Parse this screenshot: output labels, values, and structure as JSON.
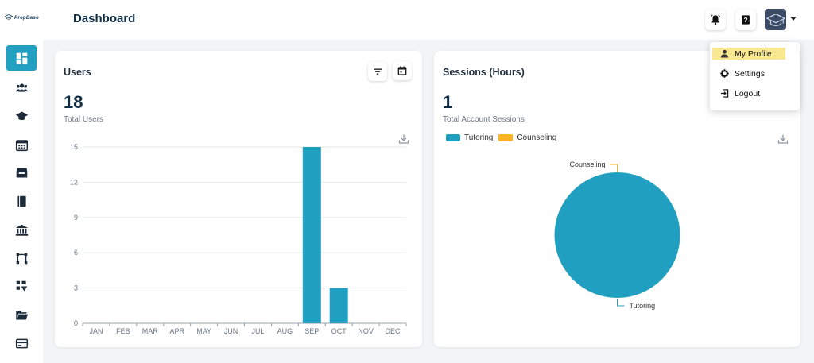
{
  "brand": {
    "name": "PrepBase"
  },
  "header": {
    "title": "Dashboard",
    "icons": [
      "notification-bell-icon",
      "help-icon",
      "user-avatar"
    ]
  },
  "sidebar": {
    "items": [
      {
        "icon": "dashboard-icon",
        "active": true
      },
      {
        "icon": "users-icon"
      },
      {
        "icon": "graduation-cap-icon"
      },
      {
        "icon": "calendar-icon"
      },
      {
        "icon": "inbox-icon"
      },
      {
        "icon": "book-icon"
      },
      {
        "icon": "institution-icon"
      },
      {
        "icon": "workflow-icon"
      },
      {
        "icon": "sort-icon"
      },
      {
        "icon": "folder-icon"
      },
      {
        "icon": "credit-card-icon"
      }
    ]
  },
  "users_card": {
    "title": "Users",
    "total": "18",
    "total_label": "Total Users"
  },
  "sessions_card": {
    "title": "Sessions (Hours)",
    "total": "1",
    "total_label": "Total Account Sessions",
    "legend": [
      {
        "label": "Tutoring",
        "color": "#219fc0"
      },
      {
        "label": "Counseling",
        "color": "#fbb320"
      }
    ]
  },
  "user_menu": {
    "items": [
      {
        "label": "My Profile",
        "icon": "person-icon",
        "highlighted": true
      },
      {
        "label": "Settings",
        "icon": "gear-icon"
      },
      {
        "label": "Logout",
        "icon": "logout-icon"
      }
    ]
  },
  "chart_data": [
    {
      "type": "bar",
      "categories": [
        "JAN",
        "FEB",
        "MAR",
        "APR",
        "MAY",
        "JUN",
        "JUL",
        "AUG",
        "SEP",
        "OCT",
        "NOV",
        "DEC"
      ],
      "values": [
        0,
        0,
        0,
        0,
        0,
        0,
        0,
        0,
        15,
        3,
        0,
        0
      ],
      "yticks": [
        0,
        3,
        6,
        9,
        12,
        15
      ],
      "ylim": [
        0,
        15
      ],
      "grid": true,
      "color": "#219fc0"
    },
    {
      "type": "pie",
      "slices": [
        {
          "label": "Tutoring",
          "value": 1,
          "color": "#219fc0"
        },
        {
          "label": "Counseling",
          "value": 0,
          "color": "#fbb320"
        }
      ]
    }
  ]
}
